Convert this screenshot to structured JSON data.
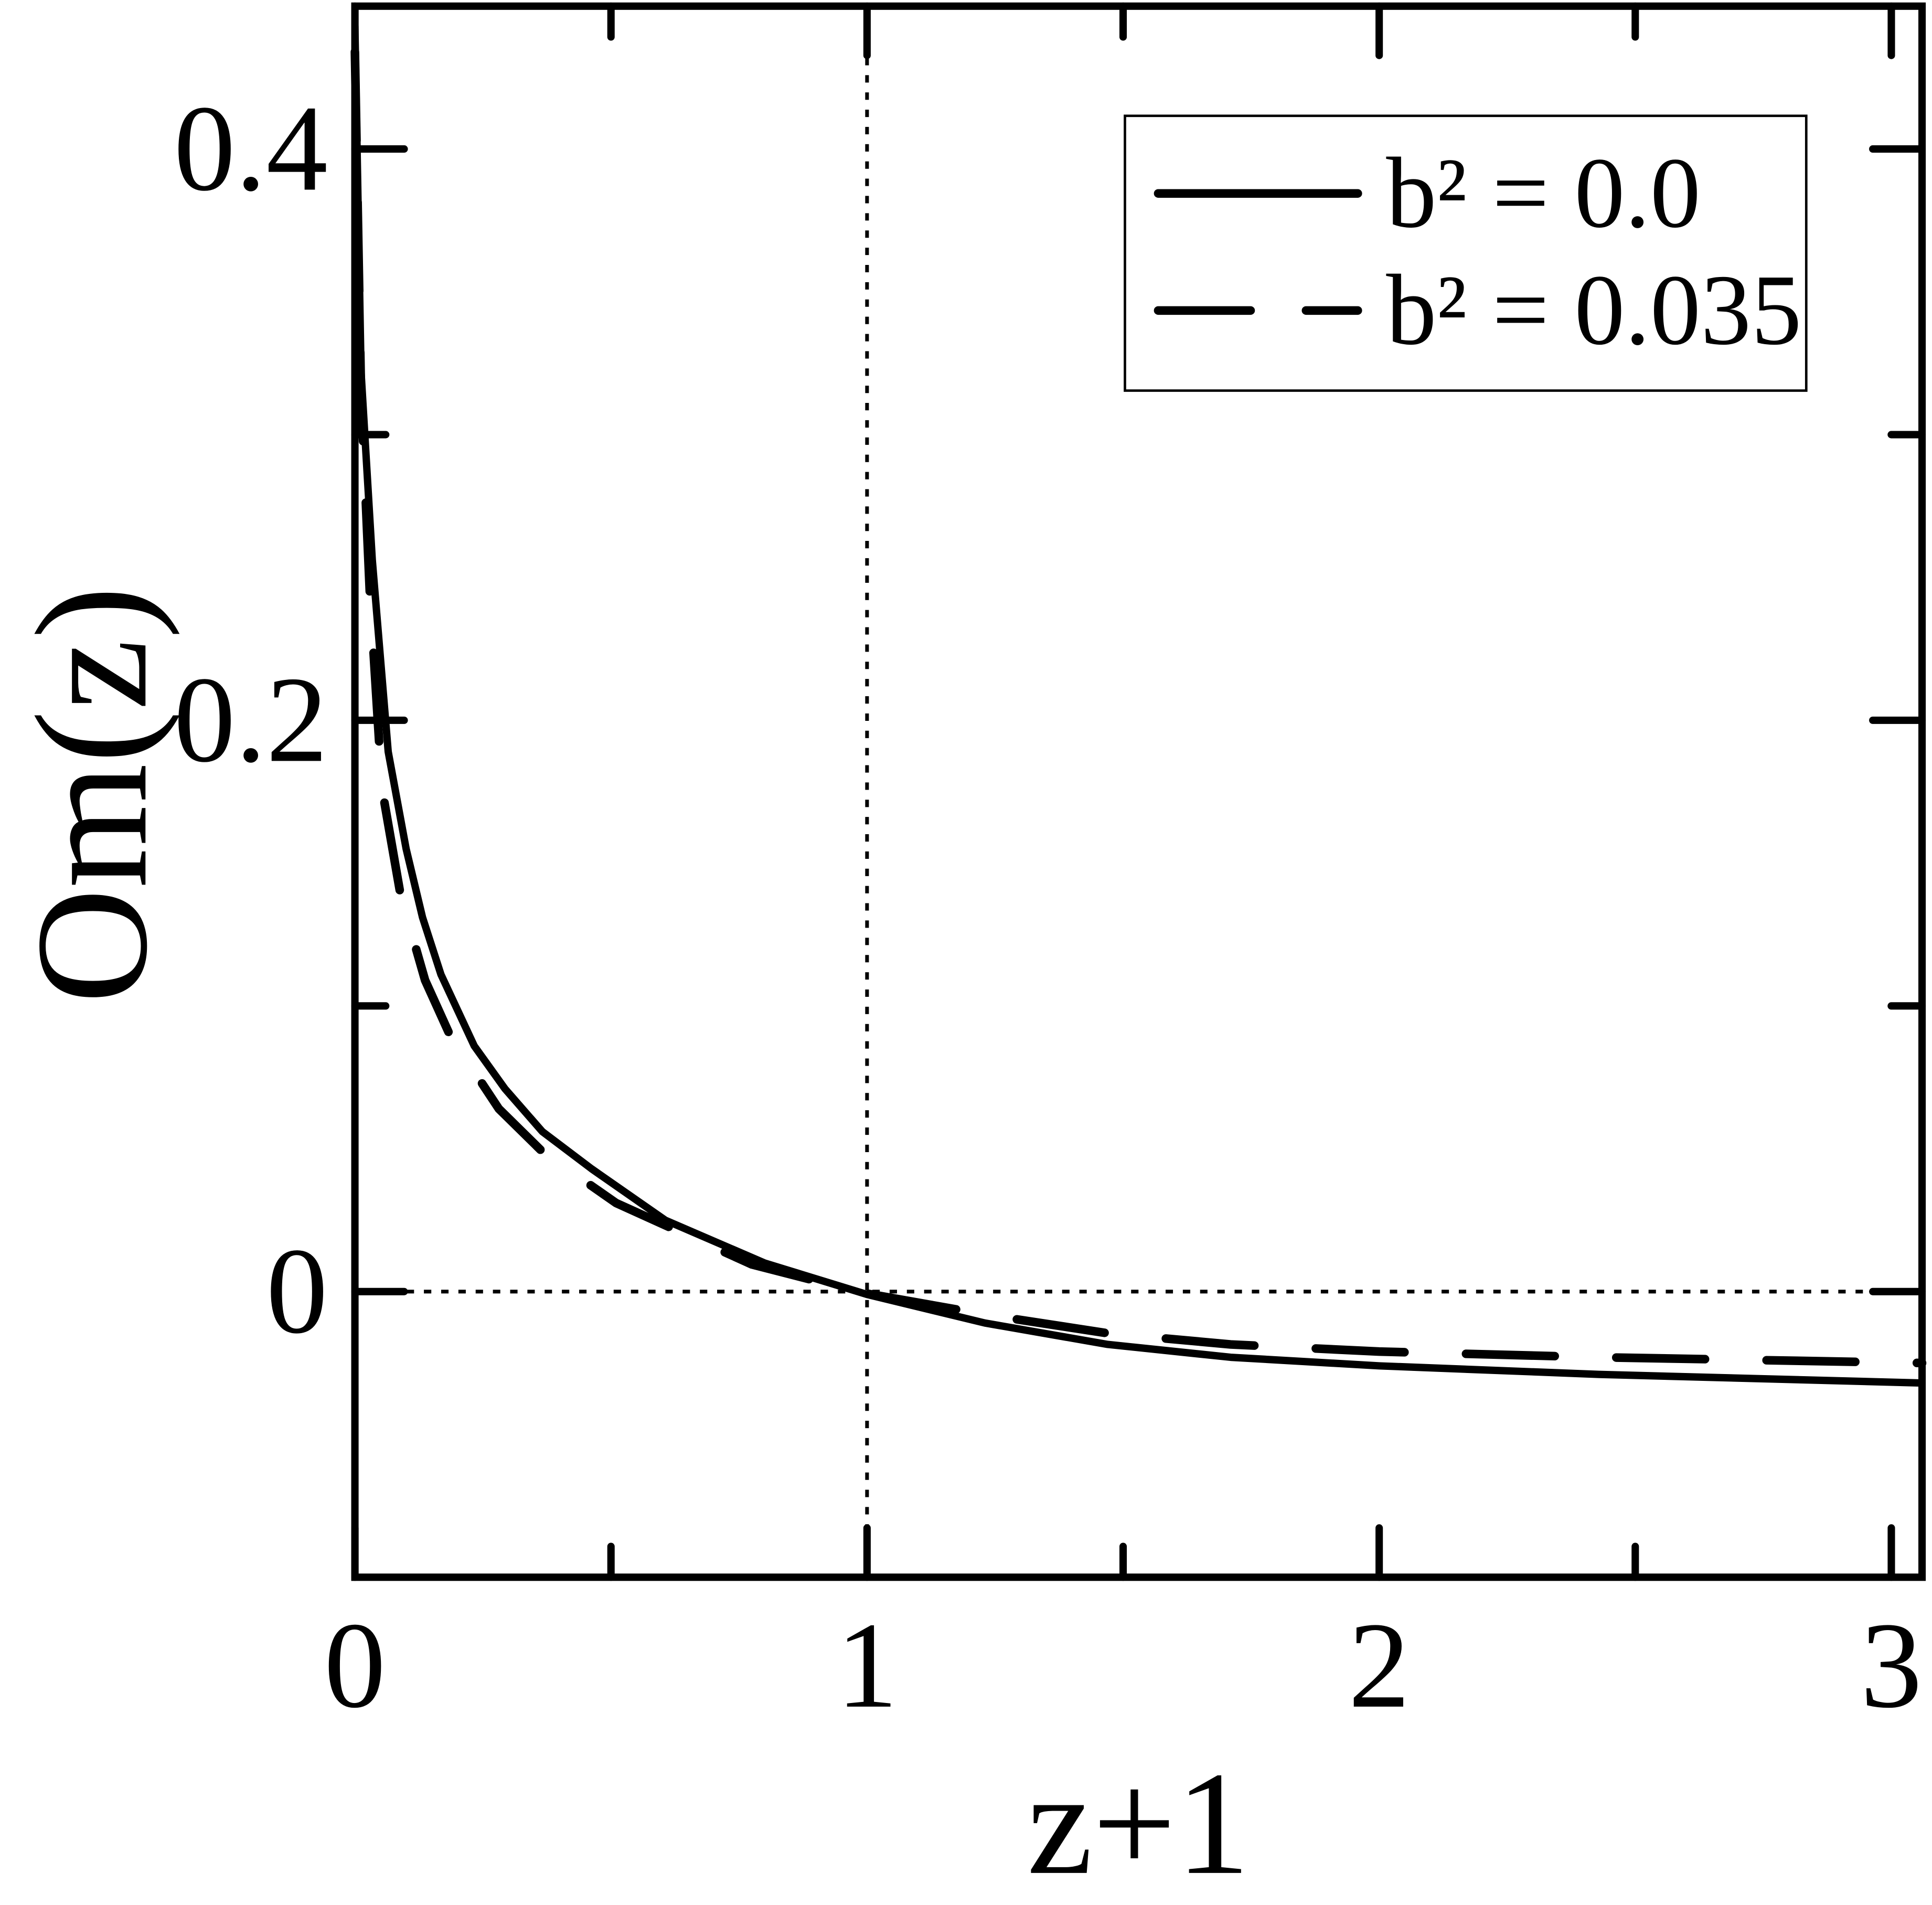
{
  "chart_data": {
    "type": "line",
    "xlabel": "z+1",
    "ylabel": "Om(z)",
    "xlim": [
      0,
      3.06
    ],
    "ylim": [
      -0.1,
      0.45
    ],
    "xticks": [
      0,
      1,
      2,
      3
    ],
    "yticks": [
      0,
      0.2,
      0.4
    ],
    "xminor": [
      0.5,
      1.5,
      2.5
    ],
    "yminor": [
      0.1,
      0.3
    ],
    "vlines": [
      1
    ],
    "hlines": [
      0
    ],
    "legend": "upper right",
    "series": [
      {
        "name": "b² = 0.0",
        "color": "#000000",
        "dash": false,
        "x": [
          0.0,
          0.012,
          0.034,
          0.065,
          0.1,
          0.132,
          0.168,
          0.233,
          0.293,
          0.366,
          0.462,
          0.606,
          0.8,
          1.0,
          1.23,
          1.47,
          1.71,
          2.0,
          2.43,
          3.06
        ],
        "values": [
          0.443,
          0.322,
          0.256,
          0.189,
          0.155,
          0.131,
          0.111,
          0.086,
          0.071,
          0.056,
          0.043,
          0.025,
          0.01,
          -0.001,
          -0.011,
          -0.0185,
          -0.023,
          -0.026,
          -0.029,
          -0.032
        ]
      },
      {
        "name": "b² = 0.035",
        "color": "#000000",
        "dash": true,
        "x": [
          0.0,
          0.012,
          0.029,
          0.053,
          0.089,
          0.137,
          0.185,
          0.281,
          0.366,
          0.51,
          0.775,
          0.99,
          1.23,
          1.47,
          1.71,
          2.0,
          2.43,
          3.06
        ],
        "values": [
          0.434,
          0.314,
          0.245,
          0.176,
          0.139,
          0.109,
          0.09,
          0.064,
          0.049,
          0.031,
          0.0095,
          -0.0004,
          -0.008,
          -0.0146,
          -0.0185,
          -0.021,
          -0.023,
          -0.025
        ]
      }
    ]
  }
}
